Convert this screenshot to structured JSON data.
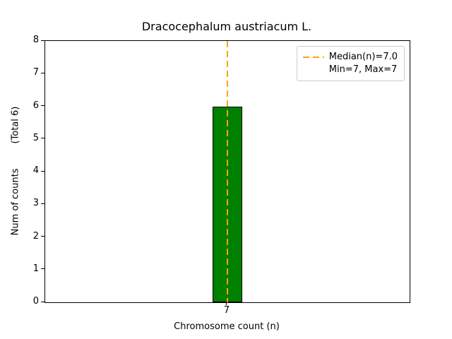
{
  "chart_data": {
    "type": "bar",
    "title": "Dracocephalum austriacum L.",
    "xlabel": "Chromosome count (n)",
    "ylabel": "Num of counts",
    "ylabel_annotation": "(Total 6)",
    "categories": [
      "7"
    ],
    "values": [
      6
    ],
    "ylim": [
      0,
      8
    ],
    "yticks": [
      0,
      1,
      2,
      3,
      4,
      5,
      6,
      7,
      8
    ],
    "bar_color": "#008000",
    "bar_edge_color": "#000000",
    "median_line": {
      "value": 7.0,
      "color": "#FFA500",
      "style": "dashed"
    },
    "legend": {
      "position": "upper right",
      "entries": [
        "Median(n)=7.0",
        "Min=7, Max=7"
      ]
    },
    "grid": false
  }
}
